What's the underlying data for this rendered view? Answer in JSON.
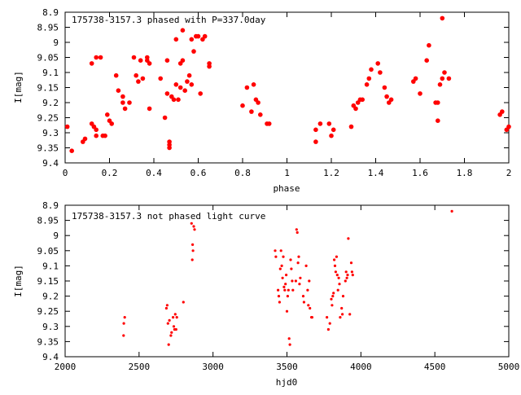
{
  "chart_data": [
    {
      "type": "scatter",
      "title": "175738-3157.3 phased with P=337.0day",
      "xlabel": "phase",
      "ylabel": "I[mag]",
      "xlim": [
        0,
        2
      ],
      "ylim": [
        9.4,
        8.9
      ],
      "y_inverted": true,
      "x_ticks": [
        0,
        0.2,
        0.4,
        0.6,
        0.8,
        1,
        1.2,
        1.4,
        1.6,
        1.8,
        2
      ],
      "x_tick_labels": [
        "0",
        "0.2",
        "0.4",
        "0.6",
        "0.8",
        "1",
        "1.2",
        "1.4",
        "1.6",
        "1.8",
        "2"
      ],
      "y_ticks": [
        8.9,
        8.95,
        9.0,
        9.05,
        9.1,
        9.15,
        9.2,
        9.25,
        9.3,
        9.35,
        9.4
      ],
      "y_tick_labels": [
        "8.9",
        "8.95",
        "9",
        "9.05",
        "9.1",
        "9.15",
        "9.2",
        "9.25",
        "9.3",
        "9.35",
        "9.4"
      ],
      "marker_color": "#ff0000",
      "marker": "filled-circle",
      "grid": false,
      "points": [
        [
          0.01,
          9.28
        ],
        [
          0.03,
          9.36
        ],
        [
          0.08,
          9.33
        ],
        [
          0.09,
          9.32
        ],
        [
          0.12,
          9.27
        ],
        [
          0.12,
          9.07
        ],
        [
          0.13,
          9.28
        ],
        [
          0.14,
          9.05
        ],
        [
          0.14,
          9.31
        ],
        [
          0.14,
          9.29
        ],
        [
          0.16,
          9.05
        ],
        [
          0.17,
          9.31
        ],
        [
          0.18,
          9.31
        ],
        [
          0.19,
          9.24
        ],
        [
          0.2,
          9.26
        ],
        [
          0.21,
          9.27
        ],
        [
          0.23,
          9.11
        ],
        [
          0.24,
          9.16
        ],
        [
          0.26,
          9.18
        ],
        [
          0.26,
          9.2
        ],
        [
          0.27,
          9.22
        ],
        [
          0.29,
          9.2
        ],
        [
          0.31,
          9.05
        ],
        [
          0.32,
          9.11
        ],
        [
          0.33,
          9.13
        ],
        [
          0.34,
          9.06
        ],
        [
          0.35,
          9.12
        ],
        [
          0.37,
          9.05
        ],
        [
          0.37,
          9.06
        ],
        [
          0.38,
          9.22
        ],
        [
          0.38,
          9.07
        ],
        [
          0.43,
          9.12
        ],
        [
          0.45,
          9.25
        ],
        [
          0.46,
          9.17
        ],
        [
          0.46,
          9.06
        ],
        [
          0.47,
          9.33
        ],
        [
          0.47,
          9.35
        ],
        [
          0.47,
          9.34
        ],
        [
          0.48,
          9.18
        ],
        [
          0.49,
          9.19
        ],
        [
          0.5,
          9.14
        ],
        [
          0.5,
          8.99
        ],
        [
          0.51,
          9.19
        ],
        [
          0.52,
          9.15
        ],
        [
          0.52,
          9.07
        ],
        [
          0.53,
          9.06
        ],
        [
          0.53,
          8.96
        ],
        [
          0.54,
          9.16
        ],
        [
          0.55,
          9.13
        ],
        [
          0.56,
          9.11
        ],
        [
          0.57,
          8.99
        ],
        [
          0.57,
          9.14
        ],
        [
          0.58,
          9.03
        ],
        [
          0.59,
          8.98
        ],
        [
          0.6,
          8.98
        ],
        [
          0.61,
          9.17
        ],
        [
          0.62,
          8.99
        ],
        [
          0.63,
          8.98
        ],
        [
          0.65,
          9.07
        ],
        [
          0.65,
          9.08
        ],
        [
          0.8,
          9.21
        ],
        [
          0.82,
          9.15
        ],
        [
          0.84,
          9.23
        ],
        [
          0.85,
          9.14
        ],
        [
          0.86,
          9.19
        ],
        [
          0.87,
          9.2
        ],
        [
          0.88,
          9.24
        ],
        [
          0.91,
          9.27
        ],
        [
          0.92,
          9.27
        ],
        [
          1.13,
          9.29
        ],
        [
          1.13,
          9.33
        ],
        [
          1.15,
          9.27
        ],
        [
          1.19,
          9.27
        ],
        [
          1.2,
          9.31
        ],
        [
          1.21,
          9.29
        ],
        [
          1.29,
          9.28
        ],
        [
          1.3,
          9.21
        ],
        [
          1.31,
          9.22
        ],
        [
          1.32,
          9.2
        ],
        [
          1.33,
          9.19
        ],
        [
          1.34,
          9.19
        ],
        [
          1.36,
          9.14
        ],
        [
          1.37,
          9.12
        ],
        [
          1.38,
          9.09
        ],
        [
          1.41,
          9.07
        ],
        [
          1.42,
          9.1
        ],
        [
          1.44,
          9.15
        ],
        [
          1.45,
          9.18
        ],
        [
          1.46,
          9.2
        ],
        [
          1.47,
          9.19
        ],
        [
          1.57,
          9.13
        ],
        [
          1.58,
          9.12
        ],
        [
          1.6,
          9.17
        ],
        [
          1.63,
          9.06
        ],
        [
          1.64,
          9.01
        ],
        [
          1.67,
          9.2
        ],
        [
          1.68,
          9.2
        ],
        [
          1.68,
          9.26
        ],
        [
          1.69,
          9.14
        ],
        [
          1.7,
          9.12
        ],
        [
          1.7,
          8.92
        ],
        [
          1.71,
          9.1
        ],
        [
          1.73,
          9.12
        ],
        [
          1.96,
          9.24
        ],
        [
          1.97,
          9.23
        ],
        [
          1.99,
          9.29
        ],
        [
          2.0,
          9.28
        ]
      ]
    },
    {
      "type": "scatter",
      "title": "175738-3157.3 not phased light curve",
      "xlabel": "hjd0",
      "ylabel": "I[mag]",
      "xlim": [
        2000,
        5000
      ],
      "ylim": [
        9.4,
        8.9
      ],
      "y_inverted": true,
      "x_ticks": [
        2000,
        2500,
        3000,
        3500,
        4000,
        4500,
        5000
      ],
      "x_tick_labels": [
        "2000",
        "2500",
        "3000",
        "3500",
        "4000",
        "4500",
        "5000"
      ],
      "y_ticks": [
        8.9,
        8.95,
        9.0,
        9.05,
        9.1,
        9.15,
        9.2,
        9.25,
        9.3,
        9.35,
        9.4
      ],
      "y_tick_labels": [
        "8.9",
        "8.95",
        "9",
        "9.05",
        "9.1",
        "9.15",
        "9.2",
        "9.25",
        "9.3",
        "9.35",
        "9.4"
      ],
      "marker_color": "#ff0000",
      "marker": "small-dot",
      "grid": false,
      "points": [
        [
          2395,
          9.33
        ],
        [
          2397,
          9.29
        ],
        [
          2403,
          9.27
        ],
        [
          2685,
          9.24
        ],
        [
          2690,
          9.23
        ],
        [
          2695,
          9.29
        ],
        [
          2700,
          9.36
        ],
        [
          2705,
          9.28
        ],
        [
          2715,
          9.33
        ],
        [
          2720,
          9.32
        ],
        [
          2730,
          9.27
        ],
        [
          2735,
          9.3
        ],
        [
          2740,
          9.31
        ],
        [
          2745,
          9.26
        ],
        [
          2750,
          9.31
        ],
        [
          2755,
          9.27
        ],
        [
          2800,
          9.22
        ],
        [
          2855,
          8.96
        ],
        [
          2860,
          9.08
        ],
        [
          2862,
          9.03
        ],
        [
          2865,
          9.05
        ],
        [
          2870,
          8.97
        ],
        [
          2875,
          8.98
        ],
        [
          3420,
          9.05
        ],
        [
          3425,
          9.07
        ],
        [
          3440,
          9.18
        ],
        [
          3445,
          9.2
        ],
        [
          3450,
          9.22
        ],
        [
          3455,
          9.11
        ],
        [
          3460,
          9.05
        ],
        [
          3465,
          9.1
        ],
        [
          3470,
          9.14
        ],
        [
          3475,
          9.07
        ],
        [
          3480,
          9.17
        ],
        [
          3485,
          9.18
        ],
        [
          3490,
          9.16
        ],
        [
          3495,
          9.13
        ],
        [
          3500,
          9.25
        ],
        [
          3505,
          9.2
        ],
        [
          3510,
          9.18
        ],
        [
          3515,
          9.34
        ],
        [
          3520,
          9.36
        ],
        [
          3525,
          9.08
        ],
        [
          3530,
          9.11
        ],
        [
          3535,
          9.15
        ],
        [
          3540,
          9.18
        ],
        [
          3560,
          9.15
        ],
        [
          3565,
          8.98
        ],
        [
          3570,
          8.99
        ],
        [
          3575,
          9.09
        ],
        [
          3580,
          9.07
        ],
        [
          3585,
          9.16
        ],
        [
          3590,
          9.14
        ],
        [
          3610,
          9.2
        ],
        [
          3615,
          9.22
        ],
        [
          3630,
          9.1
        ],
        [
          3640,
          9.18
        ],
        [
          3645,
          9.23
        ],
        [
          3650,
          9.15
        ],
        [
          3655,
          9.24
        ],
        [
          3665,
          9.27
        ],
        [
          3670,
          9.27
        ],
        [
          3770,
          9.27
        ],
        [
          3780,
          9.31
        ],
        [
          3790,
          9.29
        ],
        [
          3800,
          9.21
        ],
        [
          3805,
          9.23
        ],
        [
          3810,
          9.2
        ],
        [
          3815,
          9.19
        ],
        [
          3820,
          9.08
        ],
        [
          3825,
          9.1
        ],
        [
          3830,
          9.12
        ],
        [
          3835,
          9.07
        ],
        [
          3840,
          9.13
        ],
        [
          3845,
          9.18
        ],
        [
          3850,
          9.14
        ],
        [
          3855,
          9.16
        ],
        [
          3860,
          9.27
        ],
        [
          3870,
          9.24
        ],
        [
          3875,
          9.26
        ],
        [
          3880,
          9.2
        ],
        [
          3895,
          9.15
        ],
        [
          3900,
          9.12
        ],
        [
          3905,
          9.14
        ],
        [
          3910,
          9.13
        ],
        [
          3915,
          9.01
        ],
        [
          3925,
          9.26
        ],
        [
          3935,
          9.09
        ],
        [
          3940,
          9.12
        ],
        [
          3945,
          9.13
        ],
        [
          4615,
          8.92
        ]
      ]
    }
  ]
}
